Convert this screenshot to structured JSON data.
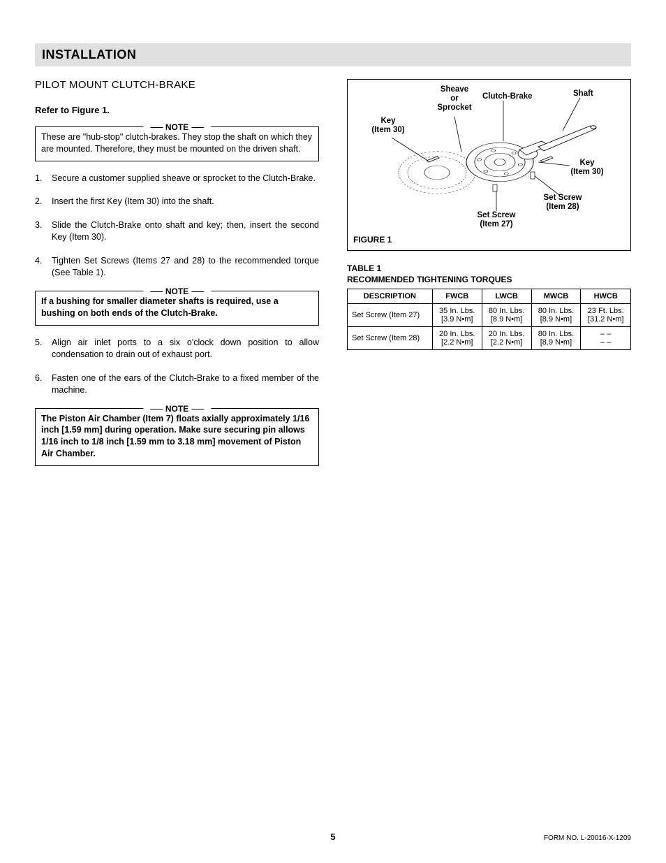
{
  "header": "INSTALLATION",
  "subheading": "PILOT MOUNT CLUTCH-BRAKE",
  "refer": "Refer to Figure 1.",
  "note_label": "NOTE",
  "note1": "These are \"hub-stop\" clutch-brakes.  They stop the shaft on which they are mounted.  Therefore, they must be mounted on the driven shaft.",
  "steps_a": [
    "Secure a customer supplied sheave or sprocket to the Clutch-Brake.",
    "Insert the first Key (Item 30) into the shaft.",
    "Slide the Clutch-Brake onto shaft and key; then, insert the second Key (Item 30).",
    "Tighten Set Screws (Items 27 and 28) to the recommended torque (See Table 1)."
  ],
  "note2": "If a bushing for smaller diameter shafts is required, use a bushing on both ends of the Clutch-Brake.",
  "steps_b": [
    "Align air inlet ports to a six o'clock down position to allow condensation to drain out of exhaust port.",
    "Fasten one of the ears of the Clutch-Brake to a fixed member of the machine."
  ],
  "note3": "The Piston Air Chamber (Item 7) floats axially approximately 1/16 inch [1.59 mm] during operation.  Make sure securing pin allows 1/16 inch to 1/8 inch [1.59 mm to 3.18 mm] movement of Piston Air Chamber.",
  "figure": {
    "caption": "FIGURE 1",
    "labels": {
      "sheave": "Sheave\nor\nSprocket",
      "clutch": "Clutch-Brake",
      "shaft": "Shaft",
      "key_l": "Key\n(Item 30)",
      "key_r": "Key\n(Item 30)",
      "screw27": "Set Screw\n(Item 27)",
      "screw28": "Set Screw\n(Item 28)"
    }
  },
  "table": {
    "title": "TABLE 1",
    "subtitle": "RECOMMENDED TIGHTENING TORQUES",
    "headers": [
      "DESCRIPTION",
      "FWCB",
      "LWCB",
      "MWCB",
      "HWCB"
    ],
    "rows": [
      {
        "desc": "Set Screw (Item 27)",
        "cells": [
          {
            "t": "35 In. Lbs.",
            "b": "[3.9 N•m]"
          },
          {
            "t": "80 In. Lbs.",
            "b": "[8.9 N•m]"
          },
          {
            "t": "80 In. Lbs.",
            "b": "[8.9 N•m]"
          },
          {
            "t": "23 Ft. Lbs.",
            "b": "[31.2 N•m]"
          }
        ]
      },
      {
        "desc": "Set Screw (Item 28)",
        "cells": [
          {
            "t": "20 In. Lbs.",
            "b": "[2.2 N•m]"
          },
          {
            "t": "20 In. Lbs.",
            "b": "[2.2 N•m]"
          },
          {
            "t": "80 In. Lbs.",
            "b": "[8.9 N•m]"
          },
          {
            "t": "– –",
            "b": "– –"
          }
        ]
      }
    ]
  },
  "page_number": "5",
  "form_no": "FORM NO. L-20016-X-1209"
}
